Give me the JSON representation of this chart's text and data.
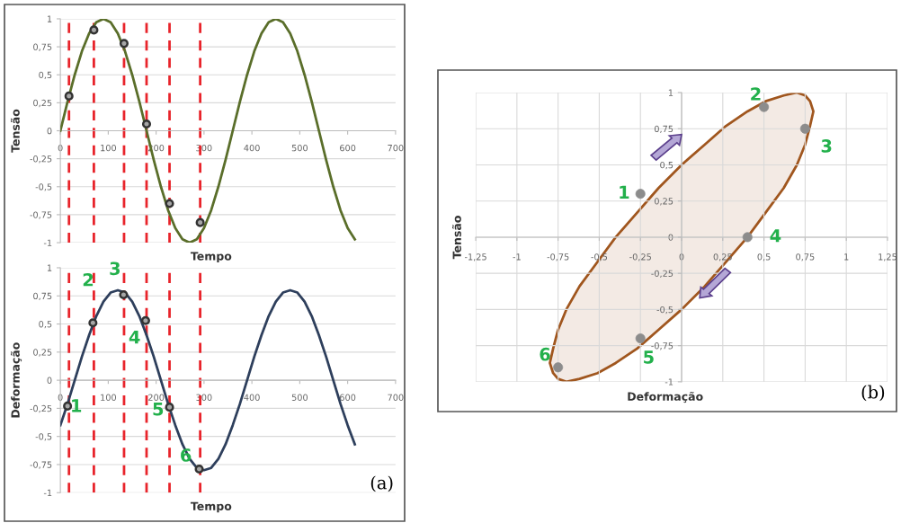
{
  "chart_data": [
    {
      "type": "line",
      "ylabel": "Tensão",
      "xlabel": "Tempo",
      "xlim": [
        0,
        700
      ],
      "xticks": [
        0,
        100,
        200,
        300,
        400,
        500,
        600,
        700
      ],
      "ylim": [
        -1,
        1
      ],
      "yticks": [
        {
          "value": -1,
          "label": "-1"
        },
        {
          "value": -0.75,
          "label": "-0,75"
        },
        {
          "value": -0.5,
          "label": "-0,5"
        },
        {
          "value": -0.25,
          "label": "-0,25"
        },
        {
          "value": 0,
          "label": "0"
        },
        {
          "value": 0.25,
          "label": "0,25"
        },
        {
          "value": 0.5,
          "label": "0,5"
        },
        {
          "value": 0.75,
          "label": "0,75"
        },
        {
          "value": 1,
          "label": "1"
        }
      ],
      "grid": "y",
      "x": [
        0,
        15,
        30,
        45,
        60,
        75,
        90,
        105,
        120,
        135,
        150,
        165,
        180,
        195,
        210,
        225,
        240,
        255,
        270,
        285,
        300,
        315,
        330,
        345,
        360,
        375,
        390,
        405,
        420,
        435,
        450,
        465,
        480,
        495,
        510,
        525,
        540,
        555,
        570,
        585,
        600,
        615
      ],
      "series": [
        {
          "color": "#5a6e2a",
          "values": [
            0,
            0.26,
            0.5,
            0.71,
            0.87,
            0.97,
            1,
            0.97,
            0.87,
            0.71,
            0.5,
            0.26,
            0,
            -0.26,
            -0.5,
            -0.71,
            -0.87,
            -0.97,
            -1,
            -0.97,
            -0.87,
            -0.71,
            -0.5,
            -0.26,
            0,
            0.26,
            0.5,
            0.71,
            0.87,
            0.97,
            1,
            0.97,
            0.87,
            0.71,
            0.5,
            0.26,
            0,
            -0.26,
            -0.5,
            -0.71,
            -0.87,
            -0.97
          ]
        },
        {
          "type": "scatter",
          "marker": "circle",
          "color": "#333333",
          "x": [
            18,
            70,
            133,
            180,
            228,
            292
          ],
          "values": [
            0.31,
            0.9,
            0.78,
            0.06,
            -0.65,
            -0.82
          ]
        }
      ],
      "ref_lines": [
        {
          "axis": "x",
          "value": 18,
          "color": "#e8242b",
          "line_style": "dashed"
        },
        {
          "axis": "x",
          "value": 70,
          "color": "#e8242b",
          "line_style": "dashed"
        },
        {
          "axis": "x",
          "value": 133,
          "color": "#e8242b",
          "line_style": "dashed"
        },
        {
          "axis": "x",
          "value": 180,
          "color": "#e8242b",
          "line_style": "dashed"
        },
        {
          "axis": "x",
          "value": 228,
          "color": "#e8242b",
          "line_style": "dashed"
        },
        {
          "axis": "x",
          "value": 292,
          "color": "#e8242b",
          "line_style": "dashed"
        }
      ]
    },
    {
      "type": "line",
      "ylabel": "Deformação",
      "xlabel": "Tempo",
      "xlim": [
        0,
        700
      ],
      "xticks": [
        0,
        100,
        200,
        300,
        400,
        500,
        600,
        700
      ],
      "ylim": [
        -1,
        1
      ],
      "yticks": [
        {
          "value": -1,
          "label": "-1"
        },
        {
          "value": -0.75,
          "label": "-0,75"
        },
        {
          "value": -0.5,
          "label": "-0,5"
        },
        {
          "value": -0.25,
          "label": "-0,25"
        },
        {
          "value": 0,
          "label": "0"
        },
        {
          "value": 0.25,
          "label": "0,25"
        },
        {
          "value": 0.5,
          "label": "0,5"
        },
        {
          "value": 0.75,
          "label": "0,75"
        },
        {
          "value": 1,
          "label": "1"
        }
      ],
      "grid": "y",
      "x": [
        0,
        15,
        30,
        45,
        60,
        75,
        90,
        105,
        120,
        135,
        150,
        165,
        180,
        195,
        210,
        225,
        240,
        255,
        270,
        285,
        300,
        315,
        330,
        345,
        360,
        375,
        390,
        405,
        420,
        435,
        450,
        465,
        480,
        495,
        510,
        525,
        540,
        555,
        570,
        585,
        600,
        615
      ],
      "series": [
        {
          "color": "#2e3f5c",
          "values": [
            -0.4,
            -0.21,
            0,
            0.21,
            0.4,
            0.57,
            0.7,
            0.78,
            0.8,
            0.78,
            0.7,
            0.57,
            0.4,
            0.21,
            0,
            -0.21,
            -0.4,
            -0.57,
            -0.7,
            -0.78,
            -0.8,
            -0.78,
            -0.7,
            -0.57,
            -0.4,
            -0.21,
            0,
            0.21,
            0.4,
            0.57,
            0.7,
            0.78,
            0.8,
            0.78,
            0.7,
            0.57,
            0.4,
            0.21,
            0,
            -0.21,
            -0.4,
            -0.57
          ]
        },
        {
          "type": "scatter",
          "marker": "circle",
          "color": "#333333",
          "x": [
            15,
            68,
            132,
            178,
            228,
            290
          ],
          "values": [
            -0.23,
            0.51,
            0.76,
            0.53,
            -0.24,
            -0.79
          ]
        }
      ],
      "ref_lines": [
        {
          "axis": "x",
          "value": 18,
          "color": "#e8242b",
          "line_style": "dashed"
        },
        {
          "axis": "x",
          "value": 70,
          "color": "#e8242b",
          "line_style": "dashed"
        },
        {
          "axis": "x",
          "value": 133,
          "color": "#e8242b",
          "line_style": "dashed"
        },
        {
          "axis": "x",
          "value": 180,
          "color": "#e8242b",
          "line_style": "dashed"
        },
        {
          "axis": "x",
          "value": 228,
          "color": "#e8242b",
          "line_style": "dashed"
        },
        {
          "axis": "x",
          "value": 292,
          "color": "#e8242b",
          "line_style": "dashed"
        }
      ],
      "annotations": [
        "1",
        "2",
        "3",
        "4",
        "5",
        "6",
        "(a)"
      ]
    },
    {
      "type": "scatter",
      "ylabel": "Tensão",
      "xlabel": "Deformação",
      "xlim": [
        -1.25,
        1.25
      ],
      "xticks": [
        {
          "value": -1.25,
          "label": "-1,25"
        },
        {
          "value": -1,
          "label": "-1"
        },
        {
          "value": -0.75,
          "label": "-0,75"
        },
        {
          "value": -0.5,
          "label": "-0,5"
        },
        {
          "value": -0.25,
          "label": "-0,25"
        },
        {
          "value": 0,
          "label": "0"
        },
        {
          "value": 0.25,
          "label": "0,25"
        },
        {
          "value": 0.5,
          "label": "0,5"
        },
        {
          "value": 0.75,
          "label": "0,75"
        },
        {
          "value": 1,
          "label": "1"
        },
        {
          "value": 1.25,
          "label": "1,25"
        }
      ],
      "ylim": [
        -1,
        1
      ],
      "yticks": [
        {
          "value": -1,
          "label": "-1"
        },
        {
          "value": -0.75,
          "label": "-0,75"
        },
        {
          "value": -0.5,
          "label": "-0,5"
        },
        {
          "value": -0.25,
          "label": "-0,25"
        },
        {
          "value": 0,
          "label": "0"
        },
        {
          "value": 0.25,
          "label": "0,25"
        },
        {
          "value": 0.5,
          "label": "0,5"
        },
        {
          "value": 0.75,
          "label": "0,75"
        },
        {
          "value": 1,
          "label": "1"
        }
      ],
      "grid": true,
      "series": [
        {
          "type": "area",
          "color": "#a0561e",
          "x": [
            -0.4,
            -0.27,
            -0.14,
            0,
            0.14,
            0.27,
            0.4,
            0.51,
            0.62,
            0.7,
            0.75,
            0.78,
            0.8,
            0.78,
            0.75,
            0.7,
            0.62,
            0.51,
            0.4,
            0.27,
            0.14,
            0,
            -0.14,
            -0.27,
            -0.4,
            -0.51,
            -0.62,
            -0.7,
            -0.75,
            -0.78,
            -0.8,
            -0.78,
            -0.75,
            -0.7,
            -0.62,
            -0.51,
            -0.4
          ],
          "values": [
            0,
            0.17,
            0.34,
            0.5,
            0.64,
            0.77,
            0.87,
            0.94,
            0.98,
            1,
            0.98,
            0.94,
            0.87,
            0.77,
            0.64,
            0.5,
            0.34,
            0.17,
            0,
            -0.17,
            -0.34,
            -0.5,
            -0.64,
            -0.77,
            -0.87,
            -0.94,
            -0.98,
            -1,
            -0.98,
            -0.94,
            -0.87,
            -0.77,
            -0.64,
            -0.5,
            -0.34,
            -0.17,
            0
          ]
        },
        {
          "marker": "circle",
          "color": "#8c8c8c",
          "x": [
            -0.25,
            0.5,
            0.75,
            0.4,
            -0.25,
            -0.75
          ],
          "values": [
            0.3,
            0.9,
            0.75,
            0,
            -0.7,
            -0.9
          ]
        }
      ],
      "annotations": [
        "1",
        "2",
        "3",
        "4",
        "5",
        "6",
        "(b)"
      ]
    }
  ]
}
